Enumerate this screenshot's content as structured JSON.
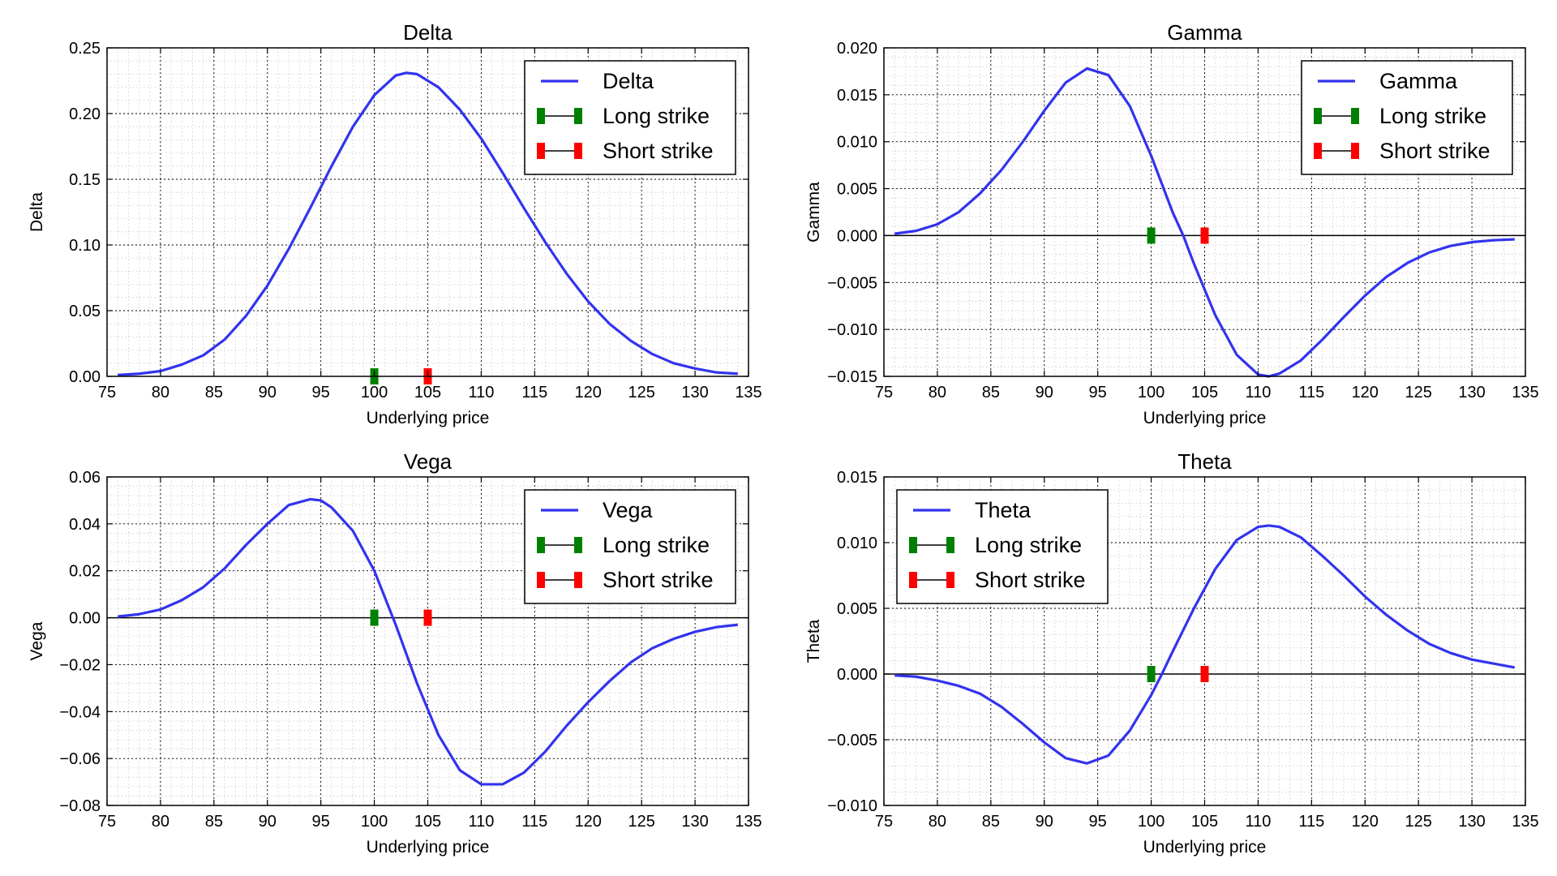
{
  "colors": {
    "curve": "#3333ee",
    "long_strike": "#008000",
    "short_strike": "#ff0000",
    "zero_line": "#000000",
    "grid": "#000000"
  },
  "chart_data": [
    {
      "type": "line",
      "title": "Delta",
      "xlabel": "Underlying price",
      "ylabel": "Delta",
      "xlim": [
        75,
        135
      ],
      "ylim": [
        0,
        0.25
      ],
      "xticks": [
        "75",
        "80",
        "85",
        "90",
        "95",
        "100",
        "105",
        "110",
        "115",
        "120",
        "125",
        "130",
        "135"
      ],
      "yticks": [
        "0.00",
        "0.05",
        "0.10",
        "0.15",
        "0.20",
        "0.25"
      ],
      "grid": true,
      "legend_position": "top-right",
      "zero_line": false,
      "series": [
        {
          "name": "Delta",
          "x": [
            76,
            78,
            80,
            82,
            84,
            86,
            88,
            90,
            92,
            94,
            96,
            98,
            100,
            102,
            103,
            104,
            106,
            108,
            110,
            112,
            114,
            116,
            118,
            120,
            122,
            124,
            126,
            128,
            130,
            132,
            134
          ],
          "y": [
            0.001,
            0.002,
            0.004,
            0.009,
            0.016,
            0.028,
            0.046,
            0.069,
            0.097,
            0.128,
            0.16,
            0.19,
            0.214,
            0.229,
            0.231,
            0.23,
            0.22,
            0.203,
            0.181,
            0.155,
            0.128,
            0.102,
            0.078,
            0.057,
            0.04,
            0.027,
            0.017,
            0.01,
            0.006,
            0.003,
            0.002
          ]
        }
      ],
      "strikes": [
        {
          "name": "Long strike",
          "x": 100,
          "y": 0
        },
        {
          "name": "Short strike",
          "x": 105,
          "y": 0
        }
      ]
    },
    {
      "type": "line",
      "title": "Gamma",
      "xlabel": "Underlying price",
      "ylabel": "Gamma",
      "xlim": [
        75,
        135
      ],
      "ylim": [
        -0.015,
        0.02
      ],
      "xticks": [
        "75",
        "80",
        "85",
        "90",
        "95",
        "100",
        "105",
        "110",
        "115",
        "120",
        "125",
        "130",
        "135"
      ],
      "yticks": [
        "−0.015",
        "−0.010",
        "−0.005",
        "0.000",
        "0.005",
        "0.010",
        "0.015",
        "0.020"
      ],
      "grid": true,
      "legend_position": "top-right",
      "zero_line": true,
      "series": [
        {
          "name": "Gamma",
          "x": [
            76,
            78,
            80,
            82,
            84,
            86,
            88,
            90,
            92,
            94,
            96,
            98,
            100,
            102,
            103,
            104,
            106,
            108,
            110,
            111,
            112,
            114,
            116,
            118,
            120,
            122,
            124,
            126,
            128,
            130,
            132,
            134
          ],
          "y": [
            0.0002,
            0.0005,
            0.0012,
            0.0025,
            0.0045,
            0.007,
            0.01,
            0.0133,
            0.0163,
            0.0178,
            0.0171,
            0.0138,
            0.0085,
            0.0025,
            0.0,
            -0.003,
            -0.0085,
            -0.0127,
            -0.0148,
            -0.015,
            -0.0147,
            -0.0133,
            -0.0111,
            -0.0087,
            -0.0064,
            -0.0044,
            -0.0029,
            -0.0018,
            -0.0011,
            -0.0007,
            -0.0005,
            -0.0004
          ]
        }
      ],
      "strikes": [
        {
          "name": "Long strike",
          "x": 100,
          "y": 0
        },
        {
          "name": "Short strike",
          "x": 105,
          "y": 0
        }
      ]
    },
    {
      "type": "line",
      "title": "Vega",
      "xlabel": "Underlying price",
      "ylabel": "Vega",
      "xlim": [
        75,
        135
      ],
      "ylim": [
        -0.08,
        0.06
      ],
      "xticks": [
        "75",
        "80",
        "85",
        "90",
        "95",
        "100",
        "105",
        "110",
        "115",
        "120",
        "125",
        "130",
        "135"
      ],
      "yticks": [
        "−0.08",
        "−0.06",
        "−0.04",
        "−0.02",
        "0.00",
        "0.02",
        "0.04",
        "0.06"
      ],
      "grid": true,
      "legend_position": "top-right",
      "zero_line": true,
      "series": [
        {
          "name": "Vega",
          "x": [
            76,
            78,
            80,
            82,
            84,
            86,
            88,
            90,
            92,
            94,
            95,
            96,
            98,
            100,
            102,
            104,
            106,
            108,
            110,
            112,
            114,
            116,
            118,
            120,
            122,
            124,
            126,
            128,
            130,
            132,
            134
          ],
          "y": [
            0.0005,
            0.0015,
            0.0035,
            0.0075,
            0.013,
            0.021,
            0.031,
            0.04,
            0.048,
            0.0505,
            0.05,
            0.047,
            0.037,
            0.02,
            -0.003,
            -0.028,
            -0.05,
            -0.065,
            -0.071,
            -0.071,
            -0.066,
            -0.057,
            -0.046,
            -0.036,
            -0.027,
            -0.019,
            -0.013,
            -0.009,
            -0.006,
            -0.004,
            -0.003
          ]
        }
      ],
      "strikes": [
        {
          "name": "Long strike",
          "x": 100,
          "y": 0
        },
        {
          "name": "Short strike",
          "x": 105,
          "y": 0
        }
      ]
    },
    {
      "type": "line",
      "title": "Theta",
      "xlabel": "Underlying price",
      "ylabel": "Theta",
      "xlim": [
        75,
        135
      ],
      "ylim": [
        -0.01,
        0.015
      ],
      "xticks": [
        "75",
        "80",
        "85",
        "90",
        "95",
        "100",
        "105",
        "110",
        "115",
        "120",
        "125",
        "130",
        "135"
      ],
      "yticks": [
        "−0.010",
        "−0.005",
        "0.000",
        "0.005",
        "0.010",
        "0.015"
      ],
      "grid": true,
      "legend_position": "top-left",
      "zero_line": true,
      "series": [
        {
          "name": "Theta",
          "x": [
            76,
            78,
            80,
            82,
            84,
            86,
            88,
            90,
            92,
            94,
            96,
            98,
            100,
            101,
            102,
            104,
            106,
            108,
            110,
            111,
            112,
            114,
            116,
            118,
            120,
            122,
            124,
            126,
            128,
            130,
            132,
            134
          ],
          "y": [
            -0.0001,
            -0.0002,
            -0.0005,
            -0.0009,
            -0.0015,
            -0.0025,
            -0.0038,
            -0.0052,
            -0.0064,
            -0.0068,
            -0.0062,
            -0.0043,
            -0.0016,
            0.0,
            0.0017,
            0.005,
            0.008,
            0.0102,
            0.0112,
            0.0113,
            0.0112,
            0.0104,
            0.009,
            0.0075,
            0.0059,
            0.0045,
            0.0033,
            0.0023,
            0.0016,
            0.0011,
            0.0008,
            0.0005
          ]
        }
      ],
      "strikes": [
        {
          "name": "Long strike",
          "x": 100,
          "y": 0
        },
        {
          "name": "Short strike",
          "x": 105,
          "y": 0
        }
      ]
    }
  ]
}
